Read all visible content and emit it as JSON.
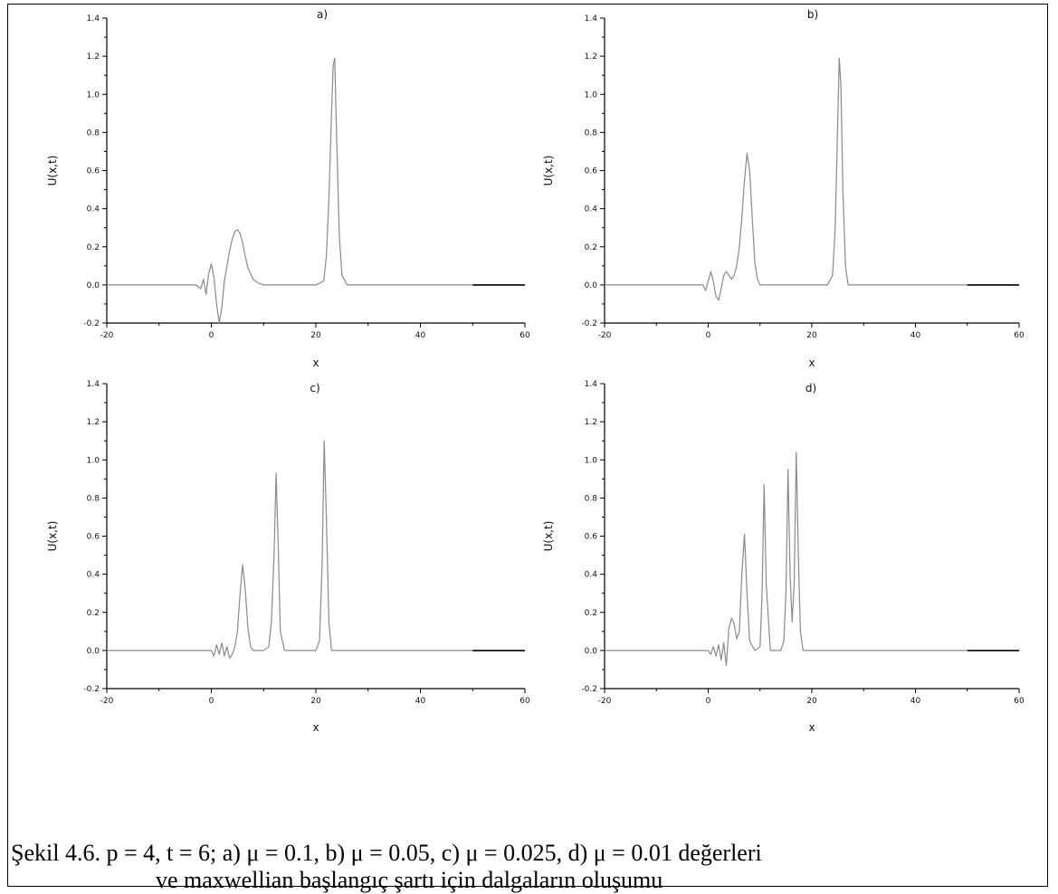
{
  "figure": {
    "caption_line1": "Şekil 4.6.  p = 4, t = 6; a) μ = 0.1, b) μ = 0.05, c) μ = 0.025, d) μ = 0.01 değerleri",
    "caption_line2": "ve maxwellian başlangıç şartı için dalgaların oluşumu"
  },
  "chart_data": [
    {
      "type": "line",
      "title": "a)",
      "xlabel": "x",
      "ylabel": "U(x,t)",
      "xlim": [
        -20,
        60
      ],
      "ylim": [
        -0.2,
        1.4
      ],
      "xticks": [
        -20,
        0,
        20,
        40,
        60
      ],
      "yticks": [
        -0.2,
        0.0,
        0.2,
        0.4,
        0.6,
        0.8,
        1.0,
        1.2,
        1.4
      ],
      "xtick_labels": [
        "-20",
        "0",
        "20",
        "40",
        "60"
      ],
      "ytick_labels": [
        "-0.2",
        "0.0",
        "0.2",
        "0.4",
        "0.6",
        "0.8",
        "1.0",
        "1.2",
        "1.4"
      ],
      "series": [
        {
          "color": "#8a8a8a",
          "x": [
            -20,
            -3,
            -2,
            -1.5,
            -1,
            -0.5,
            0,
            0.5,
            1,
            1.5,
            2,
            2.5,
            3,
            3.5,
            4,
            4.5,
            5,
            5.5,
            6,
            6.5,
            7,
            8,
            9,
            10,
            20,
            21.5,
            22,
            22.5,
            23,
            23.3,
            23.6,
            24,
            24.5,
            25,
            26,
            50
          ],
          "y": [
            0,
            0,
            -0.02,
            0.03,
            -0.05,
            0.06,
            0.11,
            0.04,
            -0.1,
            -0.2,
            -0.12,
            0.02,
            0.1,
            0.18,
            0.24,
            0.28,
            0.29,
            0.27,
            0.22,
            0.15,
            0.09,
            0.03,
            0.01,
            0,
            0,
            0.02,
            0.15,
            0.45,
            0.9,
            1.15,
            1.19,
            0.75,
            0.25,
            0.05,
            0,
            0
          ]
        },
        {
          "color": "#000000",
          "x": [
            50,
            60
          ],
          "y": [
            0,
            0
          ]
        }
      ]
    },
    {
      "type": "line",
      "title": "b)",
      "xlabel": "x",
      "ylabel": "U(x,t)",
      "xlim": [
        -20,
        60
      ],
      "ylim": [
        -0.2,
        1.4
      ],
      "xticks": [
        -20,
        0,
        20,
        40,
        60
      ],
      "yticks": [
        -0.2,
        0.0,
        0.2,
        0.4,
        0.6,
        0.8,
        1.0,
        1.2,
        1.4
      ],
      "xtick_labels": [
        "-20",
        "0",
        "20",
        "40",
        "60"
      ],
      "ytick_labels": [
        "-0.2",
        "0.0",
        "0.2",
        "0.4",
        "0.6",
        "0.8",
        "1.0",
        "1.2",
        "1.4"
      ],
      "series": [
        {
          "color": "#8a8a8a",
          "x": [
            -20,
            -1,
            -0.5,
            0,
            0.5,
            1,
            1.5,
            2,
            2.5,
            3,
            3.5,
            4,
            4.5,
            5,
            5.5,
            6,
            6.5,
            7,
            7.5,
            8,
            8.5,
            9,
            9.5,
            10,
            11,
            23,
            24,
            24.5,
            25,
            25.3,
            25.6,
            26,
            26.5,
            27,
            50
          ],
          "y": [
            0,
            0,
            -0.03,
            0.02,
            0.07,
            0.02,
            -0.06,
            -0.08,
            -0.02,
            0.05,
            0.07,
            0.05,
            0.03,
            0.05,
            0.1,
            0.2,
            0.35,
            0.55,
            0.69,
            0.6,
            0.35,
            0.12,
            0.03,
            0,
            0,
            0,
            0.05,
            0.3,
            0.85,
            1.19,
            1.05,
            0.5,
            0.1,
            0,
            0
          ]
        },
        {
          "color": "#000000",
          "x": [
            50,
            60
          ],
          "y": [
            0,
            0
          ]
        }
      ]
    },
    {
      "type": "line",
      "title": "c)",
      "xlabel": "x",
      "ylabel": "U(x,t)",
      "xlim": [
        -20,
        60
      ],
      "ylim": [
        -0.2,
        1.4
      ],
      "xticks": [
        -20,
        0,
        20,
        40,
        60
      ],
      "yticks": [
        -0.2,
        0.0,
        0.2,
        0.4,
        0.6,
        0.8,
        1.0,
        1.2,
        1.4
      ],
      "xtick_labels": [
        "-20",
        "0",
        "20",
        "40",
        "60"
      ],
      "ytick_labels": [
        "-0.2",
        "0.0",
        "0.2",
        "0.4",
        "0.6",
        "0.8",
        "1.0",
        "1.2",
        "1.4"
      ],
      "series": [
        {
          "color": "#8a8a8a",
          "x": [
            -20,
            0,
            0.5,
            1,
            1.5,
            2,
            2.5,
            3,
            3.5,
            4,
            4.5,
            5,
            5.5,
            6,
            6.5,
            7,
            7.5,
            8,
            10,
            11,
            11.5,
            12,
            12.4,
            12.8,
            13.2,
            14,
            20,
            20.7,
            21.2,
            21.6,
            22,
            22.5,
            23,
            50
          ],
          "y": [
            0,
            0,
            -0.03,
            0.03,
            -0.02,
            0.04,
            -0.03,
            0.02,
            -0.04,
            -0.02,
            0.02,
            0.1,
            0.3,
            0.45,
            0.32,
            0.12,
            0.02,
            0,
            0,
            0.02,
            0.15,
            0.5,
            0.93,
            0.55,
            0.1,
            0,
            0,
            0.05,
            0.45,
            1.1,
            0.7,
            0.15,
            0,
            0
          ]
        },
        {
          "color": "#000000",
          "x": [
            50,
            60
          ],
          "y": [
            0,
            0
          ]
        }
      ]
    },
    {
      "type": "line",
      "title": "d)",
      "xlabel": "x",
      "ylabel": "U(x,t)",
      "xlim": [
        -20,
        60
      ],
      "ylim": [
        -0.2,
        1.4
      ],
      "xticks": [
        -20,
        0,
        20,
        40,
        60
      ],
      "yticks": [
        -0.2,
        0.0,
        0.2,
        0.4,
        0.6,
        0.8,
        1.0,
        1.2,
        1.4
      ],
      "xtick_labels": [
        "-20",
        "0",
        "20",
        "40",
        "60"
      ],
      "ytick_labels": [
        "-0.2",
        "0.0",
        "0.2",
        "0.4",
        "0.6",
        "0.8",
        "1.0",
        "1.2",
        "1.4"
      ],
      "series": [
        {
          "color": "#8a8a8a",
          "x": [
            -20,
            0,
            0.5,
            1,
            1.5,
            2,
            2.5,
            3,
            3.5,
            4,
            4.5,
            5,
            5.5,
            6,
            6.5,
            7,
            7.5,
            8,
            9,
            10,
            10.4,
            10.8,
            11.2,
            12,
            14,
            14.6,
            15,
            15.4,
            15.8,
            16.2,
            16.6,
            17,
            17.4,
            17.8,
            18.3,
            19,
            50
          ],
          "y": [
            0,
            0,
            -0.02,
            0.02,
            -0.03,
            0.03,
            -0.05,
            0.04,
            -0.08,
            0.12,
            0.17,
            0.14,
            0.06,
            0.1,
            0.4,
            0.61,
            0.3,
            0.05,
            0,
            0.02,
            0.3,
            0.87,
            0.35,
            0,
            0,
            0.05,
            0.3,
            0.95,
            0.4,
            0.15,
            0.35,
            1.04,
            0.5,
            0.1,
            0,
            0,
            0
          ]
        },
        {
          "color": "#000000",
          "x": [
            50,
            60
          ],
          "y": [
            0,
            0
          ]
        }
      ]
    }
  ]
}
